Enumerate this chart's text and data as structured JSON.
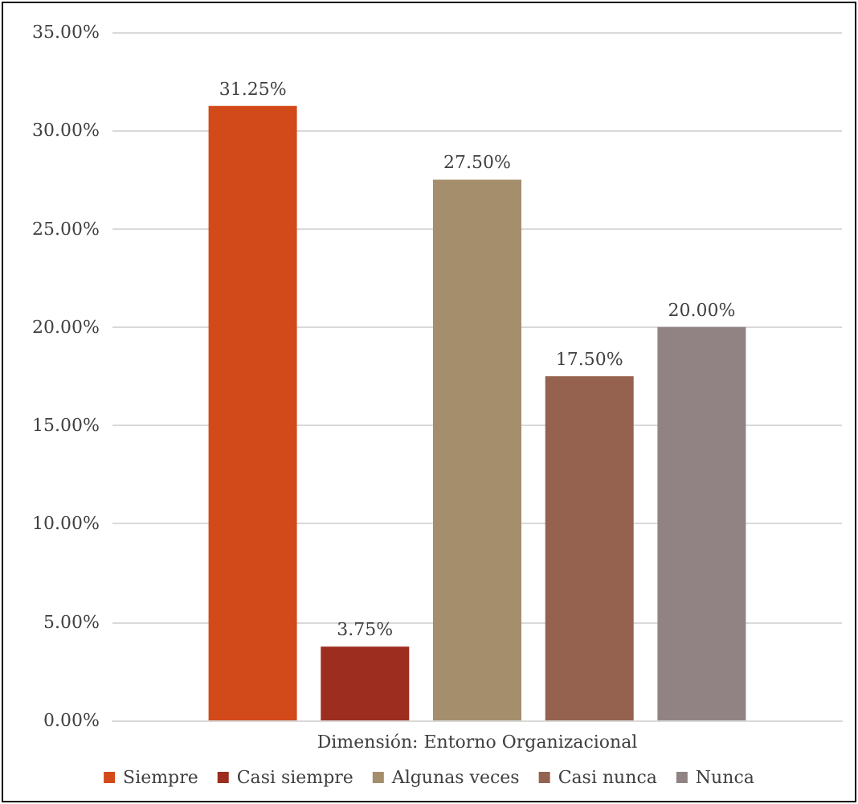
{
  "chart_data": {
    "type": "bar",
    "categories": [
      "Dimensión: Entorno Organizacional"
    ],
    "series": [
      {
        "name": "Siempre",
        "color": "#d24a19",
        "values": [
          31.25
        ],
        "value_labels": [
          "31.25%"
        ]
      },
      {
        "name": "Casi siempre",
        "color": "#9c2d1f",
        "values": [
          3.75
        ],
        "value_labels": [
          "3.75%"
        ]
      },
      {
        "name": "Algunas veces",
        "color": "#a48e6b",
        "values": [
          27.5
        ],
        "value_labels": [
          "27.50%"
        ]
      },
      {
        "name": "Casi nunca",
        "color": "#956250",
        "values": [
          17.5
        ],
        "value_labels": [
          "17.50%"
        ]
      },
      {
        "name": "Nunca",
        "color": "#918384",
        "values": [
          20
        ],
        "value_labels": [
          "20.00%"
        ]
      }
    ],
    "ylim": [
      0,
      35
    ],
    "yticks": [
      {
        "value": 0,
        "label": "0.00%"
      },
      {
        "value": 5,
        "label": "5.00%"
      },
      {
        "value": 10,
        "label": "10.00%"
      },
      {
        "value": 15,
        "label": "15.00%"
      },
      {
        "value": 20,
        "label": "20.00%"
      },
      {
        "value": 25,
        "label": "25.00%"
      },
      {
        "value": 30,
        "label": "30.00%"
      },
      {
        "value": 35,
        "label": "35.00%"
      }
    ],
    "grid": "y",
    "legend": "bottom"
  }
}
